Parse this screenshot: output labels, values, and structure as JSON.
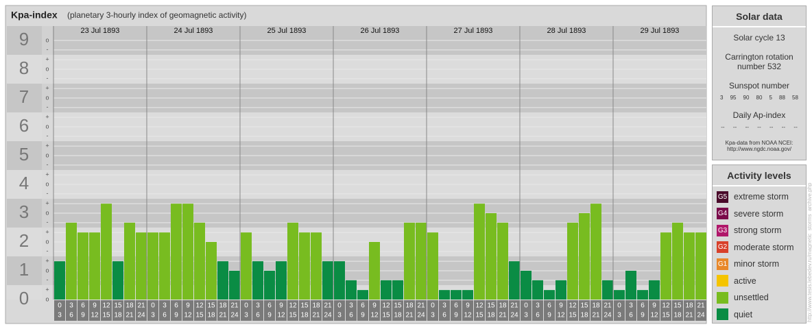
{
  "chart_data": {
    "type": "bar",
    "title": "Kpa-index",
    "subtitle": "(planetary 3-hourly index of geomagnetic activity)",
    "ylim": [
      0,
      9.5
    ],
    "yticks": [
      0,
      1,
      2,
      3,
      4,
      5,
      6,
      7,
      8,
      9
    ],
    "yticks_minor": [
      {
        "value": 0,
        "label": "o"
      },
      {
        "value": 0.33,
        "label": "+"
      },
      {
        "value": 0.67,
        "label": "-"
      },
      {
        "value": 1,
        "label": "o"
      },
      {
        "value": 1.33,
        "label": "+"
      },
      {
        "value": 1.67,
        "label": "-"
      },
      {
        "value": 2,
        "label": "o"
      },
      {
        "value": 2.33,
        "label": "+"
      },
      {
        "value": 2.67,
        "label": "-"
      },
      {
        "value": 3,
        "label": "o"
      },
      {
        "value": 3.33,
        "label": "+"
      },
      {
        "value": 3.67,
        "label": "-"
      },
      {
        "value": 4,
        "label": "o"
      },
      {
        "value": 4.33,
        "label": "+"
      },
      {
        "value": 4.67,
        "label": "-"
      },
      {
        "value": 5,
        "label": "o"
      },
      {
        "value": 5.33,
        "label": "+"
      },
      {
        "value": 5.67,
        "label": "-"
      },
      {
        "value": 6,
        "label": "o"
      },
      {
        "value": 6.33,
        "label": "+"
      },
      {
        "value": 6.67,
        "label": "-"
      },
      {
        "value": 7,
        "label": "o"
      },
      {
        "value": 7.33,
        "label": "+"
      },
      {
        "value": 7.67,
        "label": "-"
      },
      {
        "value": 8,
        "label": "o"
      },
      {
        "value": 8.33,
        "label": "+"
      },
      {
        "value": 8.67,
        "label": "-"
      },
      {
        "value": 9,
        "label": "o"
      }
    ],
    "grid": true,
    "hours": [
      [
        "0",
        "3"
      ],
      [
        "3",
        "6"
      ],
      [
        "6",
        "9"
      ],
      [
        "9",
        "12"
      ],
      [
        "12",
        "15"
      ],
      [
        "15",
        "18"
      ],
      [
        "18",
        "21"
      ],
      [
        "21",
        "24"
      ]
    ],
    "days": [
      {
        "date": "23 Jul 1893",
        "values": [
          1.33,
          2.67,
          2.33,
          2.33,
          3.33,
          1.33,
          2.67,
          2.33
        ],
        "colors": [
          "#0a8c44",
          "#78bc20",
          "#78bc20",
          "#78bc20",
          "#78bc20",
          "#0a8c44",
          "#78bc20",
          "#78bc20"
        ]
      },
      {
        "date": "24 Jul 1893",
        "values": [
          2.33,
          2.33,
          3.33,
          3.33,
          2.67,
          2,
          1.33,
          1
        ],
        "colors": [
          "#78bc20",
          "#78bc20",
          "#78bc20",
          "#78bc20",
          "#78bc20",
          "#78bc20",
          "#0a8c44",
          "#0a8c44"
        ]
      },
      {
        "date": "25 Jul 1893",
        "values": [
          2.33,
          1.33,
          1,
          1.33,
          2.67,
          2.33,
          2.33,
          1.33
        ],
        "colors": [
          "#78bc20",
          "#0a8c44",
          "#0a8c44",
          "#0a8c44",
          "#78bc20",
          "#78bc20",
          "#78bc20",
          "#0a8c44"
        ]
      },
      {
        "date": "26 Jul 1893",
        "values": [
          1.33,
          0.67,
          0.33,
          2,
          0.67,
          0.67,
          2.67,
          2.67
        ],
        "colors": [
          "#0a8c44",
          "#0a8c44",
          "#0a8c44",
          "#78bc20",
          "#0a8c44",
          "#0a8c44",
          "#78bc20",
          "#78bc20"
        ]
      },
      {
        "date": "27 Jul 1893",
        "values": [
          2.33,
          0.33,
          0.33,
          0.33,
          3.33,
          3,
          2.67,
          1.33
        ],
        "colors": [
          "#78bc20",
          "#0a8c44",
          "#0a8c44",
          "#0a8c44",
          "#78bc20",
          "#78bc20",
          "#78bc20",
          "#0a8c44"
        ]
      },
      {
        "date": "28 Jul 1893",
        "values": [
          1,
          0.67,
          0.33,
          0.67,
          2.67,
          3,
          3.33,
          0.67
        ],
        "colors": [
          "#0a8c44",
          "#0a8c44",
          "#0a8c44",
          "#0a8c44",
          "#78bc20",
          "#78bc20",
          "#78bc20",
          "#0a8c44"
        ]
      },
      {
        "date": "29 Jul 1893",
        "values": [
          0.33,
          1,
          0.33,
          0.67,
          2.33,
          2.67,
          2.33,
          2.33
        ],
        "colors": [
          "#0a8c44",
          "#0a8c44",
          "#0a8c44",
          "#0a8c44",
          "#78bc20",
          "#78bc20",
          "#78bc20",
          "#78bc20"
        ]
      }
    ]
  },
  "solar": {
    "title": "Solar data",
    "cycle": "Solar cycle 13",
    "carrington": "Carrington rotation number 532",
    "sunspot_title": "Sunspot number",
    "sunspots": [
      3,
      95,
      90,
      80,
      5,
      88,
      58
    ],
    "ap_title": "Daily Ap-index",
    "ap": [
      "--",
      "--",
      "--",
      "--",
      "--",
      "--",
      "--"
    ],
    "source": "Kpa-data from NOAA NCEI:",
    "source_url": "http://www.ngdc.noaa.gov/"
  },
  "levels": {
    "title": "Activity levels",
    "items": [
      {
        "code": "G5",
        "name": "extreme storm",
        "color": "#4a0a2a"
      },
      {
        "code": "G4",
        "name": "severe storm",
        "color": "#7a0a4a"
      },
      {
        "code": "G3",
        "name": "strong storm",
        "color": "#b0186a"
      },
      {
        "code": "G2",
        "name": "moderate storm",
        "color": "#d8402a"
      },
      {
        "code": "G1",
        "name": "minor storm",
        "color": "#e8882a"
      },
      {
        "code": "",
        "name": "active",
        "color": "#f5c400"
      },
      {
        "code": "",
        "name": "unsettled",
        "color": "#78bc20"
      },
      {
        "code": "",
        "name": "quiet",
        "color": "#0a8c44"
      }
    ]
  },
  "credit": "http://www.tesis.lebedev.ru/magnetic_storms_archive.php"
}
